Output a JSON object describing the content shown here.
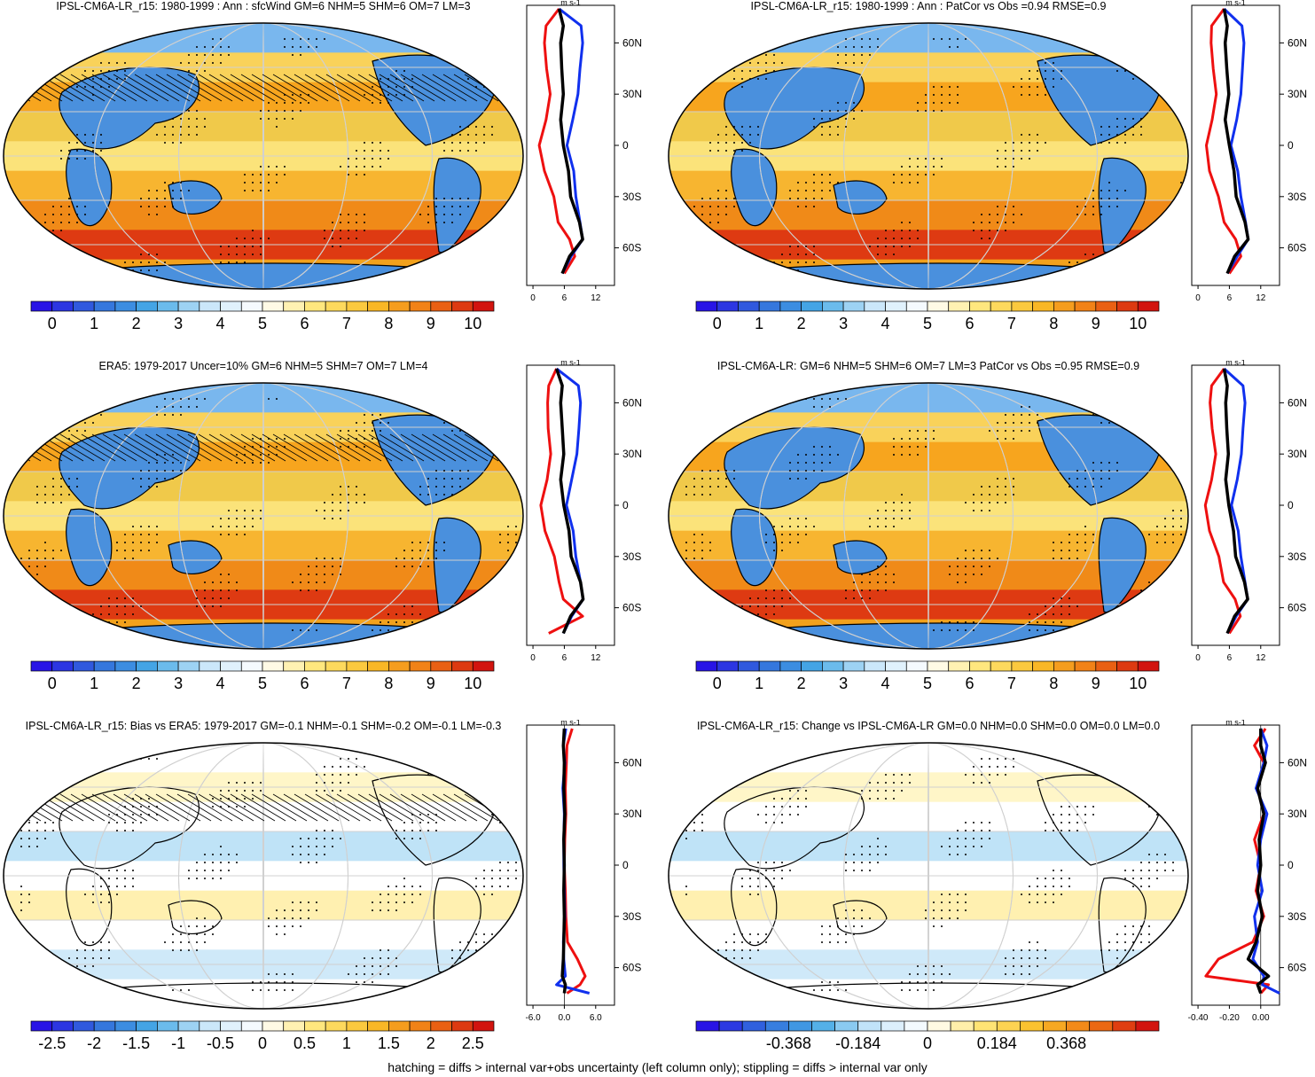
{
  "footer_note": "hatching = diffs > internal var+obs uncertainty (left column only); stippling = diffs > internal var only",
  "colors": {
    "model_line": "#000000",
    "nh_profile": "#1030ee",
    "sh_profile": "#ee1010",
    "ocean_warm": "#f7a51e",
    "land_cool": "#4a90dd"
  },
  "chart_data": [
    {
      "type": "heatmap",
      "panel": "model-climatology",
      "title": "IPSL-CM6A-LR_r15: 1980-1999 : Ann : sfcWind GM=6 NHM=5 SHM=6 OM=7 LM=3",
      "colorbar": {
        "ticks": [
          "0",
          "1",
          "2",
          "3",
          "4",
          "5",
          "6",
          "7",
          "8",
          "9",
          "10"
        ],
        "scheme": "blue-white-red"
      },
      "profile": {
        "unit": "m s-1",
        "xticks": [
          "0",
          "6",
          "12"
        ],
        "yticks": [
          "60N",
          "30N",
          "0",
          "30S",
          "60S"
        ],
        "lat": [
          80,
          70,
          60,
          45,
          30,
          15,
          0,
          -15,
          -30,
          -45,
          -55,
          -65,
          -75
        ],
        "series": [
          {
            "name": "zonal mean",
            "values": [
              5,
              5.8,
              5.3,
              5.5,
              5.8,
              5.3,
              5.8,
              6.8,
              7.2,
              8.9,
              9.5,
              7.0,
              5.6
            ]
          },
          {
            "name": "land",
            "values": [
              5,
              9.2,
              9.5,
              9.0,
              8.6,
              7.6,
              6.5,
              7.8,
              8.2,
              9.0,
              9.5,
              7.3,
              5.6
            ]
          },
          {
            "name": "ocean",
            "values": [
              5,
              2.5,
              2.2,
              2.6,
              3.3,
              2.5,
              1.2,
              2.2,
              4.0,
              4.8,
              7.0,
              8.0,
              6.0
            ]
          }
        ]
      }
    },
    {
      "type": "heatmap",
      "panel": "model-vs-obs",
      "title": "IPSL-CM6A-LR_r15: 1980-1999 : Ann : PatCor vs Obs =0.94 RMSE=0.9",
      "colorbar": {
        "ticks": [
          "0",
          "1",
          "2",
          "3",
          "4",
          "5",
          "6",
          "7",
          "8",
          "9",
          "10"
        ],
        "scheme": "blue-white-red"
      },
      "profile": {
        "unit": "m s-1",
        "xticks": [
          "0",
          "6",
          "12"
        ],
        "yticks": [
          "60N",
          "30N",
          "0",
          "30S",
          "60S"
        ],
        "lat": [
          80,
          70,
          60,
          45,
          30,
          15,
          0,
          -15,
          -30,
          -45,
          -55,
          -65,
          -75
        ],
        "series": [
          {
            "name": "zonal mean",
            "values": [
              5,
              5.6,
              5.2,
              5.5,
              5.9,
              5.2,
              6.0,
              6.9,
              7.3,
              9.0,
              9.6,
              7.0,
              5.6
            ]
          },
          {
            "name": "land",
            "values": [
              5,
              8.4,
              8.8,
              8.5,
              8.2,
              7.4,
              6.3,
              7.6,
              8.2,
              9.1,
              9.6,
              7.5,
              5.6
            ]
          },
          {
            "name": "ocean",
            "values": [
              5,
              2.6,
              2.5,
              2.9,
              3.5,
              2.7,
              1.6,
              2.2,
              3.9,
              5.0,
              7.2,
              8.2,
              6.0
            ]
          }
        ]
      }
    },
    {
      "type": "heatmap",
      "panel": "obs-climatology",
      "title": "ERA5: 1979-2017 Uncer=10% GM=6 NHM=5 SHM=7 OM=7 LM=4",
      "colorbar": {
        "ticks": [
          "0",
          "1",
          "2",
          "3",
          "4",
          "5",
          "6",
          "7",
          "8",
          "9",
          "10"
        ],
        "scheme": "blue-white-red"
      },
      "profile": {
        "unit": "m s-1",
        "xticks": [
          "0",
          "6",
          "12"
        ],
        "yticks": [
          "60N",
          "30N",
          "0",
          "30S",
          "60S"
        ],
        "lat": [
          80,
          70,
          60,
          45,
          30,
          15,
          0,
          -15,
          -30,
          -45,
          -55,
          -65,
          -75
        ],
        "series": [
          {
            "name": "zonal mean",
            "values": [
              4.5,
              5.6,
              5.3,
              5.6,
              5.9,
              5.3,
              5.9,
              6.9,
              7.3,
              9.1,
              9.6,
              7.2,
              5.8
            ]
          },
          {
            "name": "land",
            "values": [
              4.5,
              8.7,
              9.1,
              8.8,
              8.4,
              7.4,
              6.4,
              7.7,
              8.2,
              9.1,
              9.6,
              7.4,
              5.8
            ]
          },
          {
            "name": "ocean",
            "values": [
              4.5,
              3.0,
              2.8,
              2.9,
              3.4,
              2.7,
              1.5,
              2.3,
              4.1,
              5.0,
              5.8,
              9.5,
              3.0
            ]
          }
        ]
      }
    },
    {
      "type": "heatmap",
      "panel": "model-ensemble",
      "title": "IPSL-CM6A-LR: GM=6 NHM=5 SHM=6 OM=7 LM=3 PatCor vs Obs =0.95 RMSE=0.9",
      "colorbar": {
        "ticks": [
          "0",
          "1",
          "2",
          "3",
          "4",
          "5",
          "6",
          "7",
          "8",
          "9",
          "10"
        ],
        "scheme": "blue-white-red"
      },
      "profile": {
        "unit": "m s-1",
        "xticks": [
          "0",
          "6",
          "12"
        ],
        "yticks": [
          "60N",
          "30N",
          "0",
          "30S",
          "60S"
        ],
        "lat": [
          80,
          70,
          60,
          45,
          30,
          15,
          0,
          -15,
          -30,
          -45,
          -55,
          -65,
          -75
        ],
        "series": [
          {
            "name": "zonal mean",
            "values": [
              5,
              5.6,
              5.3,
              5.5,
              5.8,
              5.3,
              5.9,
              6.8,
              7.2,
              8.9,
              9.5,
              7.0,
              5.6
            ]
          },
          {
            "name": "land",
            "values": [
              5,
              8.6,
              9.0,
              8.6,
              8.3,
              7.5,
              6.4,
              7.7,
              8.2,
              9.0,
              9.5,
              7.3,
              5.6
            ]
          },
          {
            "name": "ocean",
            "values": [
              5,
              2.6,
              2.3,
              2.7,
              3.4,
              2.6,
              1.4,
              2.2,
              4.0,
              4.9,
              7.1,
              8.1,
              6.0
            ]
          }
        ]
      }
    },
    {
      "type": "heatmap",
      "panel": "bias",
      "title": "IPSL-CM6A-LR_r15: Bias vs ERA5: 1979-2017 GM=-0.1 NHM=-0.1 SHM=-0.2 OM=-0.1 LM=-0.3",
      "colorbar": {
        "ticks": [
          "-2.5",
          "-2",
          "-1.5",
          "-1",
          "-0.5",
          "0",
          "0.5",
          "1",
          "1.5",
          "2",
          "2.5"
        ],
        "scheme": "blue-white-red"
      },
      "profile": {
        "unit": "m s-1",
        "xticks": [
          "-6.0",
          "0.0",
          "6.0"
        ],
        "yticks": [
          "60N",
          "30N",
          "0",
          "30S",
          "60S"
        ],
        "lat": [
          80,
          70,
          60,
          45,
          30,
          15,
          0,
          -15,
          -30,
          -45,
          -55,
          -65,
          -70,
          -75
        ],
        "series": [
          {
            "name": "zonal mean",
            "values": [
              0.0,
              -0.2,
              0.0,
              -0.1,
              0.1,
              -0.1,
              0.0,
              -0.1,
              0.0,
              -0.1,
              -0.2,
              -0.4,
              0.2,
              0.0
            ]
          },
          {
            "name": "land",
            "values": [
              0.3,
              -0.2,
              0.1,
              -0.3,
              0.0,
              -0.1,
              -0.1,
              0.0,
              0.1,
              -0.2,
              -0.1,
              0.2,
              -1.5,
              4.8
            ]
          },
          {
            "name": "ocean",
            "values": [
              1.5,
              0.5,
              0.4,
              0.2,
              0.3,
              0.1,
              0.0,
              0.2,
              0.3,
              0.6,
              2.5,
              4.0,
              3.0,
              0.5
            ]
          }
        ]
      }
    },
    {
      "type": "heatmap",
      "panel": "change",
      "title": "IPSL-CM6A-LR_r15: Change vs IPSL-CM6A-LR GM=0.0 NHM=0.0 SHM=0.0 OM=0.0 LM=0.0",
      "colorbar": {
        "ticks": [
          "-0.368",
          "-0.184",
          "0",
          "0.184",
          "0.368"
        ],
        "scheme": "blue-white-red"
      },
      "profile": {
        "unit": "m s-1",
        "xticks": [
          "-0.40",
          "-0.20",
          "0.00"
        ],
        "yticks": [
          "60N",
          "30N",
          "0",
          "30S",
          "60S"
        ],
        "lat": [
          80,
          70,
          60,
          45,
          30,
          15,
          0,
          -15,
          -30,
          -45,
          -55,
          -65,
          -70,
          -75
        ],
        "series": [
          {
            "name": "zonal mean",
            "values": [
              0.0,
              0.0,
              0.03,
              -0.02,
              0.02,
              -0.01,
              0.0,
              -0.02,
              0.01,
              -0.03,
              -0.08,
              0.05,
              -0.02,
              0.0
            ]
          },
          {
            "name": "land",
            "values": [
              0.0,
              0.04,
              0.02,
              -0.03,
              0.04,
              0.0,
              -0.02,
              0.01,
              -0.04,
              -0.02,
              -0.05,
              0.02,
              0.01,
              0.12
            ]
          },
          {
            "name": "ocean",
            "values": [
              0.03,
              -0.04,
              0.02,
              -0.02,
              0.02,
              -0.04,
              0.0,
              -0.03,
              0.02,
              -0.05,
              -0.27,
              -0.35,
              0.05,
              0.0
            ]
          }
        ]
      }
    }
  ]
}
